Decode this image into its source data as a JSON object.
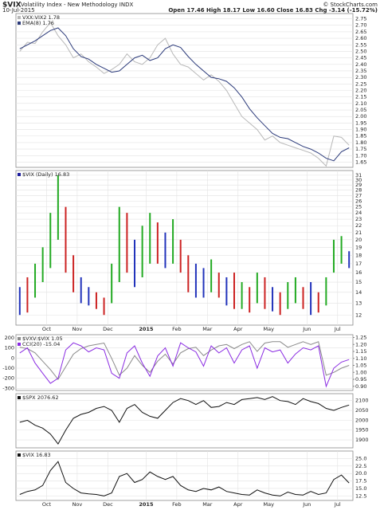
{
  "header": {
    "symbol": "$VIX",
    "name": "Volatility Index - New Methodology INDX",
    "date": "10-Jul-2015",
    "quote": "Open 17.46 High 18.17 Low 16.60 Close 16.83 Chg -3.14 (-15.72%)",
    "credit": "© StockCharts.com"
  },
  "chart_data": [
    {
      "type": "line",
      "grid": true,
      "ylim": [
        1.61,
        2.79
      ],
      "yticks": [
        2.75,
        {
          "value": 2.7,
          "label": "2.70"
        },
        2.65,
        {
          "value": 2.6,
          "label": "2.60"
        },
        2.55,
        {
          "value": 2.5,
          "label": "2.50"
        },
        2.45,
        {
          "value": 2.4,
          "label": "2.40"
        },
        2.35,
        {
          "value": 2.3,
          "label": "2.30"
        },
        2.25,
        {
          "value": 2.2,
          "label": "2.20"
        },
        2.15,
        {
          "value": 2.1,
          "label": "2.10"
        },
        2.05,
        {
          "value": 2.0,
          "label": "2.00"
        },
        1.95,
        {
          "value": 1.9,
          "label": "1.90"
        },
        1.85,
        {
          "value": 1.8,
          "label": "1.80"
        },
        1.75,
        {
          "value": 1.7,
          "label": "1.70"
        },
        1.65
      ],
      "series": [
        {
          "name": "VXX:VIX2 1.78",
          "color": "#b8b8b8",
          "values": [
            2.5,
            2.57,
            2.56,
            2.65,
            2.72,
            2.62,
            2.55,
            2.45,
            2.48,
            2.42,
            2.38,
            2.33,
            2.36,
            2.4,
            2.48,
            2.42,
            2.4,
            2.45,
            2.55,
            2.6,
            2.48,
            2.4,
            2.38,
            2.33,
            2.28,
            2.32,
            2.27,
            2.2,
            2.1,
            2.0,
            1.95,
            1.9,
            1.82,
            1.85,
            1.8,
            1.78,
            1.76,
            1.74,
            1.72,
            1.68,
            1.62,
            1.85,
            1.84,
            1.78
          ]
        },
        {
          "name": "EMA(8) 1.76",
          "color": "#2b3a7a",
          "values": [
            2.52,
            2.55,
            2.58,
            2.62,
            2.66,
            2.68,
            2.62,
            2.52,
            2.46,
            2.44,
            2.4,
            2.37,
            2.34,
            2.35,
            2.4,
            2.45,
            2.47,
            2.43,
            2.45,
            2.52,
            2.55,
            2.53,
            2.46,
            2.4,
            2.35,
            2.3,
            2.29,
            2.27,
            2.22,
            2.15,
            2.06,
            1.99,
            1.93,
            1.87,
            1.84,
            1.83,
            1.8,
            1.77,
            1.75,
            1.72,
            1.68,
            1.66,
            1.73,
            1.76
          ]
        }
      ]
    },
    {
      "type": "range",
      "grid": true,
      "log": true,
      "ylim": [
        11.2,
        32
      ],
      "yticks": [
        31,
        30,
        29,
        28,
        27,
        26,
        25,
        24,
        23,
        22,
        21,
        20,
        19,
        18,
        17,
        16,
        15,
        14,
        13,
        12
      ],
      "categories": [
        null,
        null,
        null,
        null,
        "Oct",
        null,
        null,
        null,
        "Nov",
        null,
        null,
        null,
        "Dec",
        null,
        null,
        null,
        null,
        "2015",
        null,
        null,
        null,
        "Feb",
        null,
        null,
        null,
        "Mar",
        null,
        null,
        null,
        "Apr",
        null,
        null,
        null,
        "May",
        null,
        null,
        null,
        null,
        "Jun",
        null,
        null,
        null,
        "Jul",
        null
      ],
      "series": [
        {
          "name": "$VIX (Daily) 16.83",
          "color": "#1f1f9e",
          "high": [
            14.5,
            15.5,
            17.0,
            19.0,
            24.0,
            31.0,
            25.0,
            18.0,
            15.5,
            14.5,
            14.0,
            13.5,
            17.0,
            25.0,
            24.0,
            20.0,
            22.0,
            24.0,
            22.5,
            21.0,
            23.0,
            20.0,
            18.0,
            17.0,
            16.5,
            17.5,
            16.0,
            15.5,
            16.0,
            15.0,
            14.5,
            16.0,
            15.5,
            14.5,
            14.0,
            15.0,
            15.5,
            14.5,
            15.0,
            14.0,
            15.5,
            20.0,
            20.5,
            18.5
          ],
          "low": [
            12.0,
            12.2,
            13.5,
            15.0,
            16.5,
            20.0,
            16.0,
            14.0,
            13.0,
            12.8,
            12.5,
            12.0,
            13.0,
            15.0,
            16.0,
            14.5,
            15.5,
            17.0,
            17.0,
            16.5,
            17.0,
            16.0,
            14.0,
            13.5,
            13.5,
            14.0,
            13.5,
            12.8,
            12.5,
            12.5,
            12.2,
            13.0,
            12.5,
            12.3,
            12.0,
            12.5,
            13.0,
            12.5,
            12.0,
            12.2,
            12.8,
            16.0,
            17.0,
            16.5
          ],
          "bar_colors": [
            "#2233bb",
            "#cc2222",
            "#22aa22",
            "#22aa22",
            "#22aa22",
            "#22aa22",
            "#cc2222",
            "#cc2222",
            "#2233bb",
            "#2233bb",
            "#cc2222",
            "#cc2222",
            "#22aa22",
            "#22aa22",
            "#cc2222",
            "#2233bb",
            "#22aa22",
            "#22aa22",
            "#cc2222",
            "#2233bb",
            "#22aa22",
            "#cc2222",
            "#cc2222",
            "#2233bb",
            "#2233bb",
            "#22aa22",
            "#cc2222",
            "#2233bb",
            "#cc2222",
            "#22aa22",
            "#cc2222",
            "#22aa22",
            "#cc2222",
            "#2233bb",
            "#cc2222",
            "#22aa22",
            "#22aa22",
            "#cc2222",
            "#2233bb",
            "#cc2222",
            "#22aa22",
            "#22aa22",
            "#22aa22",
            "#2233bb"
          ]
        }
      ]
    },
    {
      "type": "line",
      "grid": true,
      "ylim": [
        -320,
        230
      ],
      "yticks": [
        200,
        100,
        0,
        -100,
        -200,
        -300
      ],
      "y2lim": [
        0.87,
        1.27
      ],
      "y2ticks": [
        1.25,
        {
          "value": 1.2,
          "label": "1.20"
        },
        1.15,
        {
          "value": 1.1,
          "label": "1.10"
        },
        1.05,
        {
          "value": 1.0,
          "label": "1.00"
        },
        0.95,
        {
          "value": 0.9,
          "label": "0.90"
        }
      ],
      "series": [
        {
          "name": "$VXV:$VIX 1.05",
          "color": "#8a8a8a",
          "axis": "y2",
          "values": [
            1.18,
            1.17,
            1.14,
            1.08,
            1.02,
            0.95,
            1.04,
            1.13,
            1.17,
            1.19,
            1.2,
            1.21,
            1.1,
            0.98,
            1.03,
            1.12,
            1.05,
            1.0,
            1.08,
            1.13,
            1.06,
            1.14,
            1.17,
            1.18,
            1.12,
            1.16,
            1.19,
            1.2,
            1.17,
            1.2,
            1.22,
            1.15,
            1.21,
            1.22,
            1.22,
            1.18,
            1.2,
            1.22,
            1.2,
            1.22,
            0.98,
            1.0,
            1.03,
            1.05
          ]
        },
        {
          "name": "CCI(20) -15.04",
          "color": "#8a2be2",
          "values": [
            50,
            100,
            -50,
            -150,
            -250,
            -200,
            80,
            150,
            120,
            60,
            100,
            80,
            -150,
            -200,
            50,
            120,
            -50,
            -180,
            20,
            100,
            -80,
            150,
            100,
            60,
            -80,
            120,
            50,
            100,
            -50,
            80,
            120,
            -100,
            100,
            60,
            80,
            -50,
            40,
            100,
            80,
            120,
            -280,
            -100,
            -40,
            -15
          ]
        }
      ]
    },
    {
      "type": "line",
      "grid": true,
      "ylim": [
        1860,
        2135
      ],
      "yticks": [
        2100,
        2050,
        2000,
        1950,
        1900
      ],
      "series": [
        {
          "name": "$SPX 2076.62",
          "color": "#111111",
          "values": [
            1990,
            2000,
            1975,
            1960,
            1930,
            1880,
            1950,
            2010,
            2030,
            2040,
            2060,
            2070,
            2050,
            1990,
            2060,
            2080,
            2040,
            2020,
            2010,
            2050,
            2090,
            2110,
            2100,
            2080,
            2100,
            2065,
            2070,
            2090,
            2080,
            2105,
            2110,
            2115,
            2105,
            2120,
            2100,
            2095,
            2080,
            2110,
            2095,
            2085,
            2060,
            2050,
            2065,
            2077
          ]
        }
      ]
    },
    {
      "type": "line",
      "grid": true,
      "ylim": [
        11,
        27.5
      ],
      "yticks": [
        {
          "value": 25,
          "label": "25.0"
        },
        22.5,
        {
          "value": 20,
          "label": "20.0"
        },
        17.5,
        {
          "value": 15,
          "label": "15.0"
        },
        12.5
      ],
      "categories": [
        null,
        null,
        null,
        null,
        "Oct",
        null,
        null,
        null,
        "Nov",
        null,
        null,
        null,
        "Dec",
        null,
        null,
        null,
        null,
        "2015",
        null,
        null,
        null,
        "Feb",
        null,
        null,
        null,
        "Mar",
        null,
        null,
        null,
        "Apr",
        null,
        null,
        null,
        "May",
        null,
        null,
        null,
        null,
        "Jun",
        null,
        null,
        null,
        "Jul",
        null
      ],
      "series": [
        {
          "name": "$VIX 16.83",
          "color": "#111111",
          "values": [
            13,
            14,
            14.5,
            16,
            21,
            24,
            17,
            15,
            13.5,
            13.2,
            13,
            12.5,
            13.5,
            19,
            20,
            17,
            18,
            20.5,
            19,
            18,
            19,
            16,
            14.5,
            14,
            15,
            14.5,
            15.5,
            14,
            13.5,
            13,
            12.8,
            14.5,
            13.5,
            12.8,
            12.5,
            13.8,
            13,
            12.8,
            14,
            13,
            13.5,
            18,
            19.5,
            16.83
          ]
        }
      ]
    }
  ]
}
